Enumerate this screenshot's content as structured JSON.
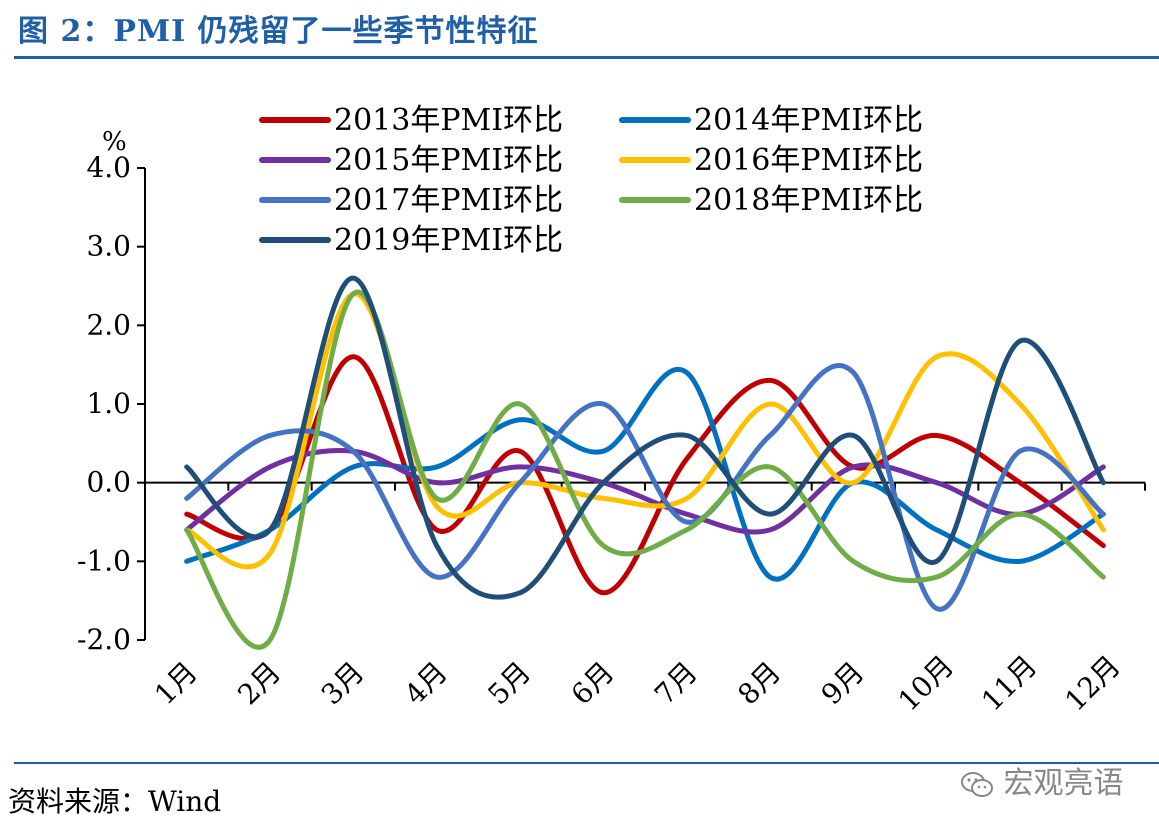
{
  "figure": {
    "title": "图 2：PMI 仍残留了一些季节性特征",
    "source": "资料来源：Wind",
    "watermark": "宏观亮语"
  },
  "colors": {
    "title_blue": "#1f5fa8",
    "series": [
      "#c00000",
      "#0070c0",
      "#7030a0",
      "#ffc000",
      "#4472c4",
      "#70ad47",
      "#1f4e79"
    ]
  },
  "chart_data": {
    "type": "line",
    "unit": "%",
    "categories": [
      "1月",
      "2月",
      "3月",
      "4月",
      "5月",
      "6月",
      "7月",
      "8月",
      "9月",
      "10月",
      "11月",
      "12月"
    ],
    "ylim": [
      -2.0,
      4.0
    ],
    "yticks": [
      -2.0,
      -1.0,
      0.0,
      1.0,
      2.0,
      3.0,
      4.0
    ],
    "ytick_labels": [
      "-2.0",
      "-1.0",
      "0.0",
      "1.0",
      "2.0",
      "3.0",
      "4.0"
    ],
    "legend_position": "top",
    "grid": false,
    "series": [
      {
        "name": "2013年PMI环比",
        "values": [
          -0.4,
          -0.6,
          1.6,
          -0.6,
          0.4,
          -1.4,
          0.3,
          1.3,
          0.2,
          0.6,
          0.0,
          -0.8
        ]
      },
      {
        "name": "2014年PMI环比",
        "values": [
          -1.0,
          -0.6,
          0.2,
          0.2,
          0.8,
          0.4,
          1.4,
          -1.2,
          0.0,
          -0.6,
          -1.0,
          -0.4
        ]
      },
      {
        "name": "2015年PMI环比",
        "values": [
          -0.6,
          0.2,
          0.4,
          0.0,
          0.2,
          0.0,
          -0.4,
          -0.6,
          0.2,
          0.0,
          -0.4,
          0.2
        ]
      },
      {
        "name": "2016年PMI环比",
        "values": [
          -0.6,
          -0.9,
          2.4,
          -0.3,
          0.0,
          -0.2,
          -0.2,
          1.0,
          0.0,
          1.6,
          1.0,
          -0.6
        ]
      },
      {
        "name": "2017年PMI环比",
        "values": [
          -0.2,
          0.6,
          0.4,
          -1.2,
          0.0,
          1.0,
          -0.5,
          0.6,
          1.4,
          -1.6,
          0.4,
          -0.4
        ]
      },
      {
        "name": "2018年PMI环比",
        "values": [
          -0.6,
          -2.0,
          2.4,
          -0.2,
          1.0,
          -0.8,
          -0.6,
          0.2,
          -1.0,
          -1.2,
          -0.4,
          -1.2
        ]
      },
      {
        "name": "2019年PMI环比",
        "values": [
          0.2,
          -0.6,
          2.6,
          -0.8,
          -1.4,
          0.0,
          0.6,
          -0.4,
          0.6,
          -1.0,
          1.8,
          0.0
        ]
      }
    ]
  }
}
